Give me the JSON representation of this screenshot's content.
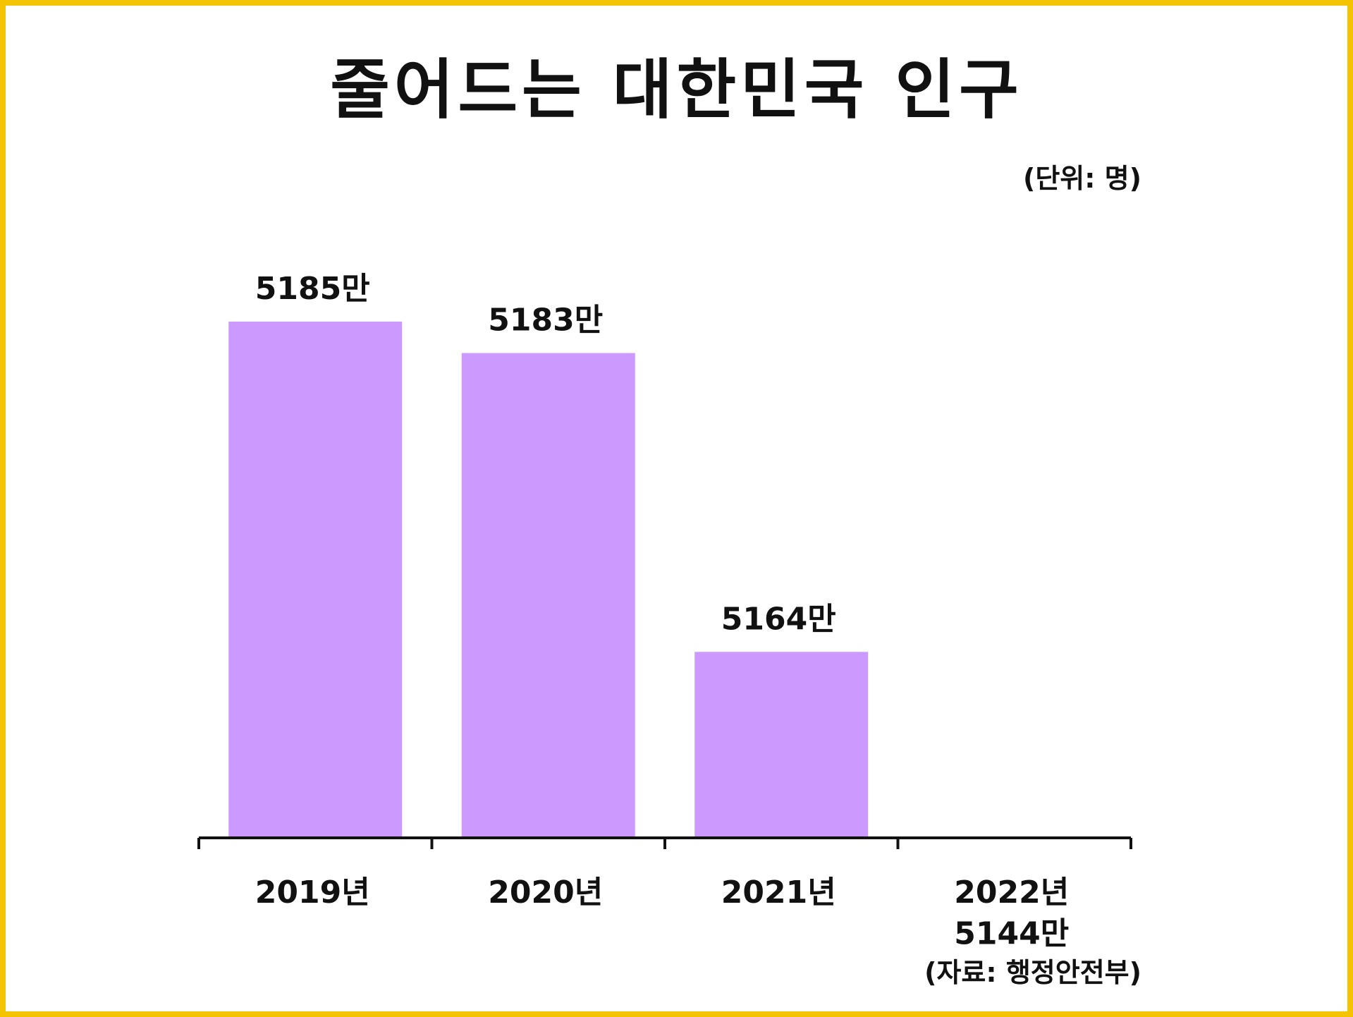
{
  "title": "줄어드는 대한민국 인구",
  "unit_note": "(단위: 명)",
  "source_note": "(자료: 행정안전부)",
  "colors": {
    "border": "#f5c400",
    "bar": "#cc99ff",
    "text": "#111111",
    "axis": "#111111"
  },
  "chart_data": {
    "type": "bar",
    "categories": [
      "2019년",
      "2020년",
      "2021년",
      "2022년"
    ],
    "values": [
      5185,
      5183,
      5164,
      5144
    ],
    "value_labels": [
      "5185만",
      "5183만",
      "5164만",
      "5144만"
    ],
    "xlabel": "",
    "ylabel": "",
    "grid": false,
    "legend": "none"
  }
}
